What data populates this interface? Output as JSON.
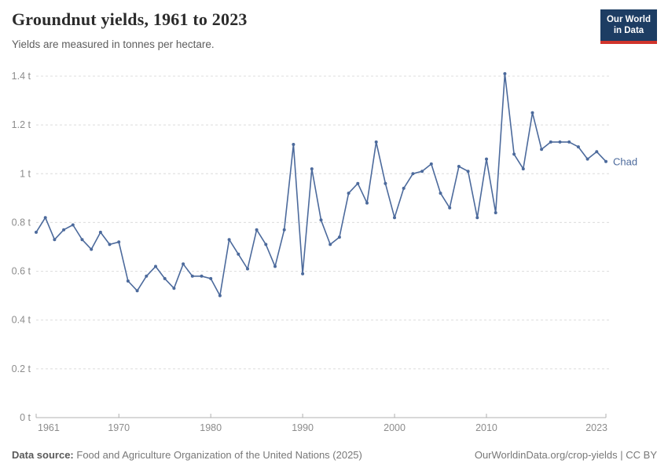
{
  "header": {
    "title": "Groundnut yields, 1961 to 2023",
    "subtitle": "Yields are measured in tonnes per hectare.",
    "logo": {
      "line1": "Our World",
      "line2": "in Data",
      "bg": "#1d3d63",
      "accent": "#d0342c"
    }
  },
  "chart_data": {
    "type": "line",
    "title": "Groundnut yields, 1961 to 2023",
    "ylabel": "",
    "xlabel": "",
    "unit": "t",
    "xlim": [
      1961,
      2023
    ],
    "ylim": [
      0,
      1.4
    ],
    "grid": "horizontal-dashed",
    "legend_position": "end-of-line-label",
    "x_ticks": [
      1961,
      1970,
      1980,
      1990,
      2000,
      2010,
      2023
    ],
    "y_ticks": [
      0,
      0.2,
      0.4,
      0.6,
      0.8,
      1,
      1.2,
      1.4
    ],
    "y_tick_labels": [
      "0 t",
      "0.2 t",
      "0.4 t",
      "0.6 t",
      "0.8 t",
      "1 t",
      "1.2 t",
      "1.4 t"
    ],
    "series": [
      {
        "name": "Chad",
        "color": "#4c6a9c",
        "x": [
          1961,
          1962,
          1963,
          1964,
          1965,
          1966,
          1967,
          1968,
          1969,
          1970,
          1971,
          1972,
          1973,
          1974,
          1975,
          1976,
          1977,
          1978,
          1979,
          1980,
          1981,
          1982,
          1983,
          1984,
          1985,
          1986,
          1987,
          1988,
          1989,
          1990,
          1991,
          1992,
          1993,
          1994,
          1995,
          1996,
          1997,
          1998,
          1999,
          2000,
          2001,
          2002,
          2003,
          2004,
          2005,
          2006,
          2007,
          2008,
          2009,
          2010,
          2011,
          2012,
          2013,
          2014,
          2015,
          2016,
          2017,
          2018,
          2019,
          2020,
          2021,
          2022,
          2023
        ],
        "values": [
          0.76,
          0.82,
          0.73,
          0.77,
          0.79,
          0.73,
          0.69,
          0.76,
          0.71,
          0.72,
          0.56,
          0.52,
          0.58,
          0.62,
          0.57,
          0.53,
          0.63,
          0.58,
          0.58,
          0.57,
          0.5,
          0.73,
          0.67,
          0.61,
          0.77,
          0.71,
          0.62,
          0.77,
          1.12,
          0.59,
          1.02,
          0.81,
          0.71,
          0.74,
          0.92,
          0.96,
          0.88,
          1.13,
          0.96,
          0.82,
          0.94,
          1.0,
          1.01,
          1.04,
          0.92,
          0.86,
          1.03,
          1.01,
          0.82,
          1.06,
          0.84,
          1.41,
          1.08,
          1.02,
          1.25,
          1.1,
          1.13,
          1.13,
          1.13,
          1.11,
          1.06,
          1.09,
          1.05
        ]
      }
    ]
  },
  "footer": {
    "source_label": "Data source:",
    "source_text": "Food and Agriculture Organization of the United Nations (2025)",
    "right_text": "OurWorldinData.org/crop-yields | CC BY"
  }
}
